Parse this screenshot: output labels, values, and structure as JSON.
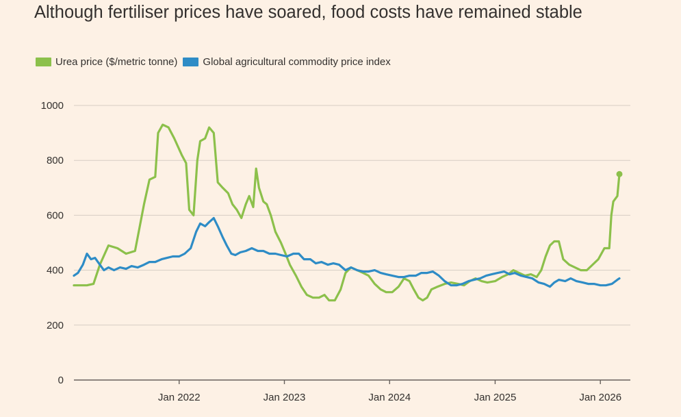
{
  "colors": {
    "background": "#fdf1e5",
    "grid": "#d6cdc3",
    "axis": "#66605c",
    "urea": "#8cc04b",
    "index": "#2e8cc6",
    "text": "#33302e"
  },
  "chart_data": {
    "type": "line",
    "title": "Although fertiliser prices have soared, food costs have remained stable",
    "xlabel": "",
    "ylabel": "",
    "xlim": [
      "2021-01-01",
      "2026-04-15"
    ],
    "ylim": [
      0,
      1000
    ],
    "yticks": [
      0,
      200,
      400,
      600,
      800,
      1000
    ],
    "ytick_labels": [
      "0",
      "200",
      "400",
      "600",
      "800",
      "1000"
    ],
    "xticks": [
      "2022-01-01",
      "2023-01-01",
      "2024-01-01",
      "2025-01-01",
      "2026-01-01"
    ],
    "xtick_labels": [
      "Jan 2022",
      "Jan 2023",
      "Jan 2024",
      "Jan 2025",
      "Jan 2026"
    ],
    "grid": true,
    "legend_position": "top-left",
    "series": [
      {
        "name": "Urea price ($/metric tonne)",
        "color": "#8cc04b",
        "end_marker": true,
        "points": [
          [
            "2021-01-01",
            345
          ],
          [
            "2021-02-15",
            345
          ],
          [
            "2021-03-10",
            350
          ],
          [
            "2021-04-01",
            420
          ],
          [
            "2021-05-01",
            490
          ],
          [
            "2021-06-01",
            480
          ],
          [
            "2021-07-01",
            460
          ],
          [
            "2021-08-01",
            470
          ],
          [
            "2021-09-01",
            640
          ],
          [
            "2021-09-20",
            730
          ],
          [
            "2021-10-10",
            740
          ],
          [
            "2021-10-20",
            900
          ],
          [
            "2021-11-05",
            930
          ],
          [
            "2021-11-25",
            920
          ],
          [
            "2021-12-15",
            880
          ],
          [
            "2022-01-10",
            820
          ],
          [
            "2022-01-25",
            790
          ],
          [
            "2022-02-05",
            620
          ],
          [
            "2022-02-20",
            600
          ],
          [
            "2022-03-05",
            800
          ],
          [
            "2022-03-15",
            870
          ],
          [
            "2022-04-01",
            880
          ],
          [
            "2022-04-15",
            920
          ],
          [
            "2022-05-01",
            900
          ],
          [
            "2022-05-15",
            720
          ],
          [
            "2022-06-01",
            700
          ],
          [
            "2022-06-20",
            680
          ],
          [
            "2022-07-05",
            640
          ],
          [
            "2022-07-20",
            620
          ],
          [
            "2022-08-05",
            590
          ],
          [
            "2022-08-20",
            640
          ],
          [
            "2022-09-01",
            670
          ],
          [
            "2022-09-15",
            630
          ],
          [
            "2022-09-25",
            770
          ],
          [
            "2022-10-05",
            700
          ],
          [
            "2022-10-20",
            650
          ],
          [
            "2022-11-01",
            640
          ],
          [
            "2022-11-15",
            600
          ],
          [
            "2022-12-01",
            540
          ],
          [
            "2022-12-20",
            500
          ],
          [
            "2023-01-05",
            460
          ],
          [
            "2023-01-20",
            420
          ],
          [
            "2023-02-10",
            380
          ],
          [
            "2023-03-01",
            340
          ],
          [
            "2023-03-20",
            310
          ],
          [
            "2023-04-10",
            300
          ],
          [
            "2023-05-01",
            300
          ],
          [
            "2023-05-20",
            310
          ],
          [
            "2023-06-05",
            290
          ],
          [
            "2023-06-25",
            290
          ],
          [
            "2023-07-15",
            330
          ],
          [
            "2023-08-01",
            390
          ],
          [
            "2023-08-20",
            410
          ],
          [
            "2023-09-10",
            400
          ],
          [
            "2023-10-01",
            390
          ],
          [
            "2023-10-20",
            380
          ],
          [
            "2023-11-10",
            350
          ],
          [
            "2023-12-01",
            330
          ],
          [
            "2023-12-20",
            320
          ],
          [
            "2024-01-10",
            320
          ],
          [
            "2024-02-01",
            340
          ],
          [
            "2024-02-20",
            370
          ],
          [
            "2024-03-10",
            360
          ],
          [
            "2024-03-25",
            330
          ],
          [
            "2024-04-10",
            300
          ],
          [
            "2024-04-25",
            290
          ],
          [
            "2024-05-10",
            300
          ],
          [
            "2024-05-25",
            330
          ],
          [
            "2024-06-15",
            340
          ],
          [
            "2024-07-10",
            350
          ],
          [
            "2024-08-01",
            355
          ],
          [
            "2024-08-25",
            350
          ],
          [
            "2024-09-15",
            345
          ],
          [
            "2024-10-05",
            360
          ],
          [
            "2024-10-25",
            370
          ],
          [
            "2024-11-15",
            360
          ],
          [
            "2024-12-05",
            355
          ],
          [
            "2025-01-01",
            360
          ],
          [
            "2025-01-25",
            375
          ],
          [
            "2025-02-15",
            385
          ],
          [
            "2025-03-05",
            400
          ],
          [
            "2025-03-25",
            390
          ],
          [
            "2025-04-15",
            380
          ],
          [
            "2025-05-05",
            385
          ],
          [
            "2025-05-25",
            375
          ],
          [
            "2025-06-10",
            400
          ],
          [
            "2025-06-25",
            450
          ],
          [
            "2025-07-10",
            490
          ],
          [
            "2025-07-25",
            505
          ],
          [
            "2025-08-10",
            505
          ],
          [
            "2025-08-25",
            440
          ],
          [
            "2025-09-15",
            420
          ],
          [
            "2025-10-05",
            410
          ],
          [
            "2025-10-25",
            400
          ],
          [
            "2025-11-15",
            400
          ],
          [
            "2025-12-05",
            420
          ],
          [
            "2025-12-25",
            440
          ],
          [
            "2026-01-15",
            480
          ],
          [
            "2026-02-01",
            480
          ],
          [
            "2026-02-08",
            600
          ],
          [
            "2026-02-15",
            650
          ],
          [
            "2026-03-01",
            670
          ],
          [
            "2026-03-08",
            750
          ]
        ]
      },
      {
        "name": "Global agricultural commodity price index",
        "color": "#2e8cc6",
        "end_marker": false,
        "points": [
          [
            "2021-01-01",
            380
          ],
          [
            "2021-01-15",
            390
          ],
          [
            "2021-02-01",
            420
          ],
          [
            "2021-02-15",
            460
          ],
          [
            "2021-03-01",
            440
          ],
          [
            "2021-03-15",
            445
          ],
          [
            "2021-04-01",
            420
          ],
          [
            "2021-04-15",
            400
          ],
          [
            "2021-05-01",
            410
          ],
          [
            "2021-05-20",
            400
          ],
          [
            "2021-06-10",
            410
          ],
          [
            "2021-07-01",
            405
          ],
          [
            "2021-07-20",
            415
          ],
          [
            "2021-08-10",
            410
          ],
          [
            "2021-09-01",
            420
          ],
          [
            "2021-09-20",
            430
          ],
          [
            "2021-10-10",
            430
          ],
          [
            "2021-11-01",
            440
          ],
          [
            "2021-11-20",
            445
          ],
          [
            "2021-12-10",
            450
          ],
          [
            "2022-01-01",
            450
          ],
          [
            "2022-01-20",
            460
          ],
          [
            "2022-02-10",
            480
          ],
          [
            "2022-03-01",
            540
          ],
          [
            "2022-03-15",
            570
          ],
          [
            "2022-04-01",
            560
          ],
          [
            "2022-04-15",
            575
          ],
          [
            "2022-05-01",
            590
          ],
          [
            "2022-05-15",
            560
          ],
          [
            "2022-06-01",
            520
          ],
          [
            "2022-06-15",
            490
          ],
          [
            "2022-07-01",
            460
          ],
          [
            "2022-07-15",
            455
          ],
          [
            "2022-08-01",
            465
          ],
          [
            "2022-08-20",
            470
          ],
          [
            "2022-09-10",
            480
          ],
          [
            "2022-10-01",
            470
          ],
          [
            "2022-10-20",
            470
          ],
          [
            "2022-11-10",
            460
          ],
          [
            "2022-12-01",
            460
          ],
          [
            "2022-12-20",
            455
          ],
          [
            "2023-01-10",
            450
          ],
          [
            "2023-02-01",
            460
          ],
          [
            "2023-02-20",
            460
          ],
          [
            "2023-03-10",
            440
          ],
          [
            "2023-04-01",
            440
          ],
          [
            "2023-04-20",
            425
          ],
          [
            "2023-05-10",
            430
          ],
          [
            "2023-06-01",
            420
          ],
          [
            "2023-06-20",
            425
          ],
          [
            "2023-07-10",
            420
          ],
          [
            "2023-08-01",
            400
          ],
          [
            "2023-08-20",
            410
          ],
          [
            "2023-09-10",
            400
          ],
          [
            "2023-10-01",
            395
          ],
          [
            "2023-10-20",
            395
          ],
          [
            "2023-11-10",
            400
          ],
          [
            "2023-12-01",
            390
          ],
          [
            "2023-12-20",
            385
          ],
          [
            "2024-01-10",
            380
          ],
          [
            "2024-02-01",
            375
          ],
          [
            "2024-02-20",
            375
          ],
          [
            "2024-03-10",
            380
          ],
          [
            "2024-04-01",
            380
          ],
          [
            "2024-04-20",
            390
          ],
          [
            "2024-05-10",
            390
          ],
          [
            "2024-05-30",
            395
          ],
          [
            "2024-06-20",
            380
          ],
          [
            "2024-07-10",
            360
          ],
          [
            "2024-08-01",
            345
          ],
          [
            "2024-08-20",
            345
          ],
          [
            "2024-09-10",
            350
          ],
          [
            "2024-10-01",
            360
          ],
          [
            "2024-10-20",
            365
          ],
          [
            "2024-11-10",
            370
          ],
          [
            "2024-12-01",
            380
          ],
          [
            "2024-12-20",
            385
          ],
          [
            "2025-01-10",
            390
          ],
          [
            "2025-02-01",
            395
          ],
          [
            "2025-02-20",
            385
          ],
          [
            "2025-03-10",
            390
          ],
          [
            "2025-04-01",
            380
          ],
          [
            "2025-04-20",
            375
          ],
          [
            "2025-05-10",
            370
          ],
          [
            "2025-06-01",
            355
          ],
          [
            "2025-06-20",
            350
          ],
          [
            "2025-07-10",
            340
          ],
          [
            "2025-07-25",
            355
          ],
          [
            "2025-08-10",
            365
          ],
          [
            "2025-09-01",
            360
          ],
          [
            "2025-09-20",
            370
          ],
          [
            "2025-10-10",
            360
          ],
          [
            "2025-11-01",
            355
          ],
          [
            "2025-11-20",
            350
          ],
          [
            "2025-12-10",
            350
          ],
          [
            "2026-01-01",
            345
          ],
          [
            "2026-01-20",
            345
          ],
          [
            "2026-02-10",
            350
          ],
          [
            "2026-03-01",
            365
          ],
          [
            "2026-03-08",
            370
          ]
        ]
      }
    ]
  }
}
